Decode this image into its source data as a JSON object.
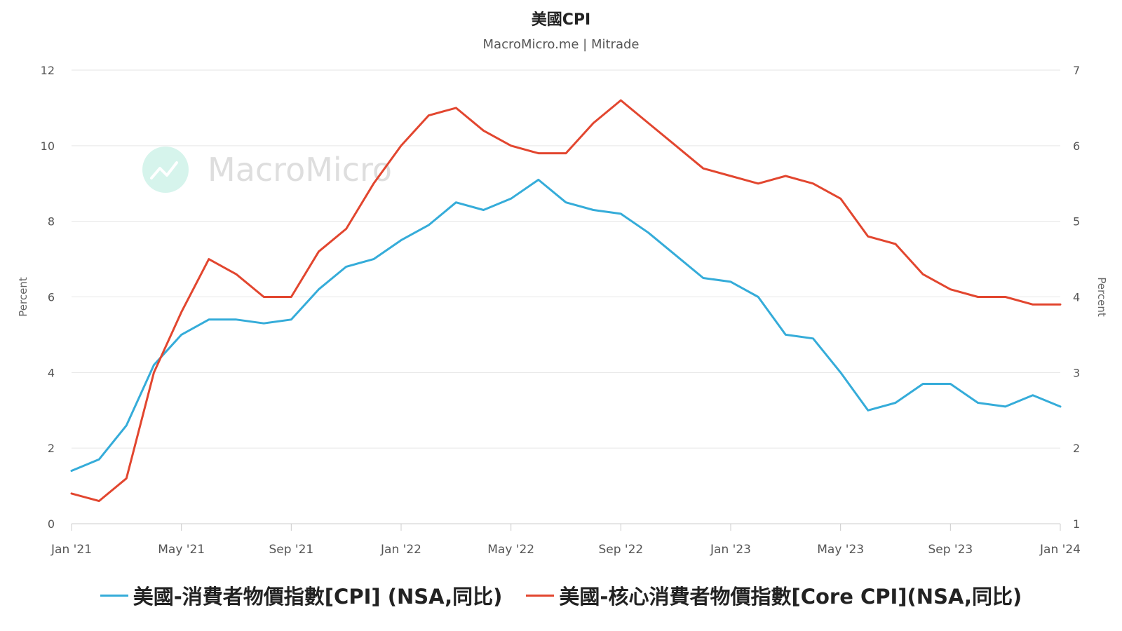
{
  "chart_data": {
    "type": "line",
    "title": "美國CPI",
    "subtitle": "MacroMicro.me | Mitrade",
    "watermark": "MacroMicro",
    "x": [
      "2021-01",
      "2021-02",
      "2021-03",
      "2021-04",
      "2021-05",
      "2021-06",
      "2021-07",
      "2021-08",
      "2021-09",
      "2021-10",
      "2021-11",
      "2021-12",
      "2022-01",
      "2022-02",
      "2022-03",
      "2022-04",
      "2022-05",
      "2022-06",
      "2022-07",
      "2022-08",
      "2022-09",
      "2022-10",
      "2022-11",
      "2022-12",
      "2023-01",
      "2023-02",
      "2023-03",
      "2023-04",
      "2023-05",
      "2023-06",
      "2023-07",
      "2023-08",
      "2023-09",
      "2023-10",
      "2023-11",
      "2023-12",
      "2024-01"
    ],
    "xticks": [
      "Jan '21",
      "May '21",
      "Sep '21",
      "Jan '22",
      "May '22",
      "Sep '22",
      "Jan '23",
      "May '23",
      "Sep '23",
      "Jan '24"
    ],
    "xtick_months": [
      0,
      4,
      8,
      12,
      16,
      20,
      24,
      28,
      32,
      36
    ],
    "ylabel_left": "Percent",
    "ylabel_right": "Percent",
    "ylim_left": [
      0,
      12
    ],
    "ylim_right": [
      1,
      7
    ],
    "yticks_left": [
      0,
      2,
      4,
      6,
      8,
      10,
      12
    ],
    "yticks_right": [
      1,
      2,
      3,
      4,
      5,
      6,
      7
    ],
    "grid": true,
    "legend_position": "bottom",
    "series": [
      {
        "name": "美國-消費者物價指數[CPI] (NSA,同比)",
        "axis": "left",
        "color": "#35ACD9",
        "values": [
          1.4,
          1.7,
          2.6,
          4.2,
          5.0,
          5.4,
          5.4,
          5.3,
          5.4,
          6.2,
          6.8,
          7.0,
          7.5,
          7.9,
          8.5,
          8.3,
          8.6,
          9.1,
          8.5,
          8.3,
          8.2,
          7.7,
          7.1,
          6.5,
          6.4,
          6.0,
          5.0,
          4.9,
          4.0,
          3.0,
          3.2,
          3.7,
          3.7,
          3.2,
          3.1,
          3.4,
          3.1
        ]
      },
      {
        "name": "美國-核心消費者物價指數[Core CPI](NSA,同比)",
        "axis": "right",
        "color": "#E2462F",
        "values": [
          1.4,
          1.3,
          1.6,
          3.0,
          3.8,
          4.5,
          4.3,
          4.0,
          4.0,
          4.6,
          4.9,
          5.5,
          6.0,
          6.4,
          6.5,
          6.2,
          6.0,
          5.9,
          5.9,
          6.3,
          6.6,
          6.3,
          6.0,
          5.7,
          5.6,
          5.5,
          5.6,
          5.5,
          5.3,
          4.8,
          4.7,
          4.3,
          4.1,
          4.0,
          4.0,
          3.9,
          3.9
        ]
      }
    ]
  }
}
